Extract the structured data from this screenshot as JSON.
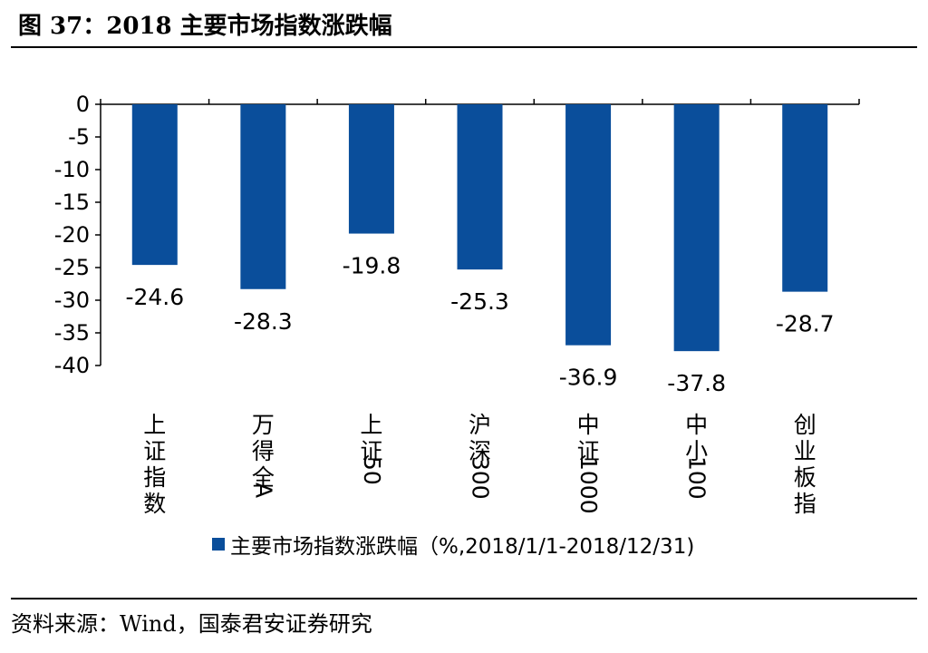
{
  "figure_title": "图 37：2018 主要市场指数涨跌幅",
  "source_text": "资料来源：Wind，国泰君安证券研究",
  "legend": {
    "label": "主要市场指数涨跌幅（%,2018/1/1-2018/12/31)"
  },
  "colors": {
    "bar": "#0a4e9b",
    "axis": "#000000"
  },
  "chart_data": {
    "type": "bar",
    "categories": [
      "上证指数",
      "万得全A",
      "上证50",
      "沪深300",
      "中证1000",
      "中小100",
      "创业板指"
    ],
    "values": [
      -24.6,
      -28.3,
      -19.8,
      -25.3,
      -36.9,
      -37.8,
      -28.7
    ],
    "value_labels": [
      "-24.6",
      "-28.3",
      "-19.8",
      "-25.3",
      "-36.9",
      "-37.8",
      "-28.7"
    ],
    "yticks": [
      "0",
      "-5",
      "-10",
      "-15",
      "-20",
      "-25",
      "-30",
      "-35",
      "-40"
    ],
    "ylim": [
      -40,
      0
    ],
    "series": [
      {
        "name": "主要市场指数涨跌幅（%,2018/1/1-2018/12/31)"
      }
    ]
  }
}
